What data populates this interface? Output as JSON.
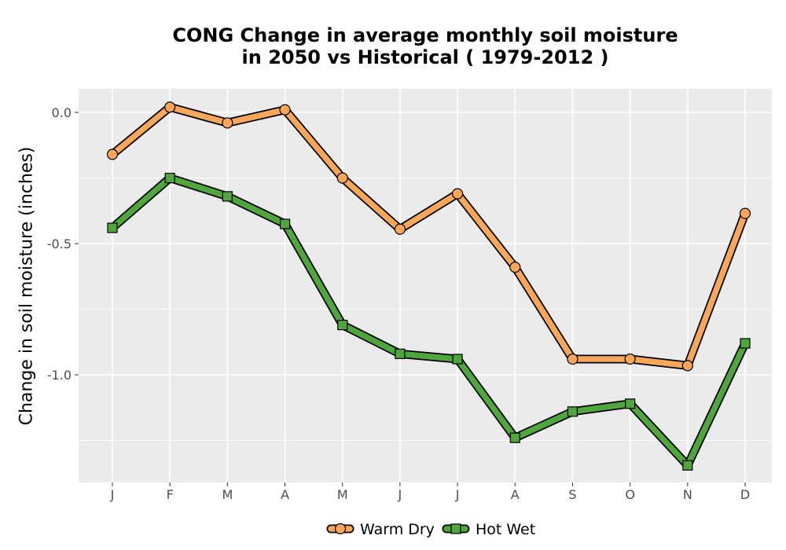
{
  "chart_data": {
    "type": "line",
    "title": "CONG  Change in average monthly soil moisture",
    "subtitle": "in 2050 vs Historical ( 1979-2012 )",
    "xlabel": "",
    "ylabel": "Change in soil moisture (inches)",
    "categories": [
      "J",
      "F",
      "M",
      "A",
      "M",
      "J",
      "J",
      "A",
      "S",
      "O",
      "N",
      "D"
    ],
    "ylim": [
      -1.41,
      0.09
    ],
    "yticks": [
      0.0,
      -0.5,
      -1.0
    ],
    "ytick_labels": [
      "0.0",
      "-0.5",
      "-1.0"
    ],
    "grid": true,
    "legend_position": "bottom",
    "series": [
      {
        "name": "Warm Dry",
        "marker": "circle",
        "color": "#F7A65A",
        "values": [
          -0.16,
          0.02,
          -0.04,
          0.01,
          -0.25,
          -0.445,
          -0.31,
          -0.59,
          -0.94,
          -0.94,
          -0.965,
          -0.385
        ]
      },
      {
        "name": "Hot Wet",
        "marker": "square",
        "color": "#4EA63C",
        "values": [
          -0.44,
          -0.25,
          -0.32,
          -0.425,
          -0.81,
          -0.92,
          -0.94,
          -1.24,
          -1.14,
          -1.11,
          -1.345,
          -0.88
        ]
      }
    ],
    "colors": {
      "panel": "#EBEBEB",
      "grid": "#FFFFFF",
      "outline": "#000000",
      "tick_text": "#4D4D4D"
    }
  }
}
